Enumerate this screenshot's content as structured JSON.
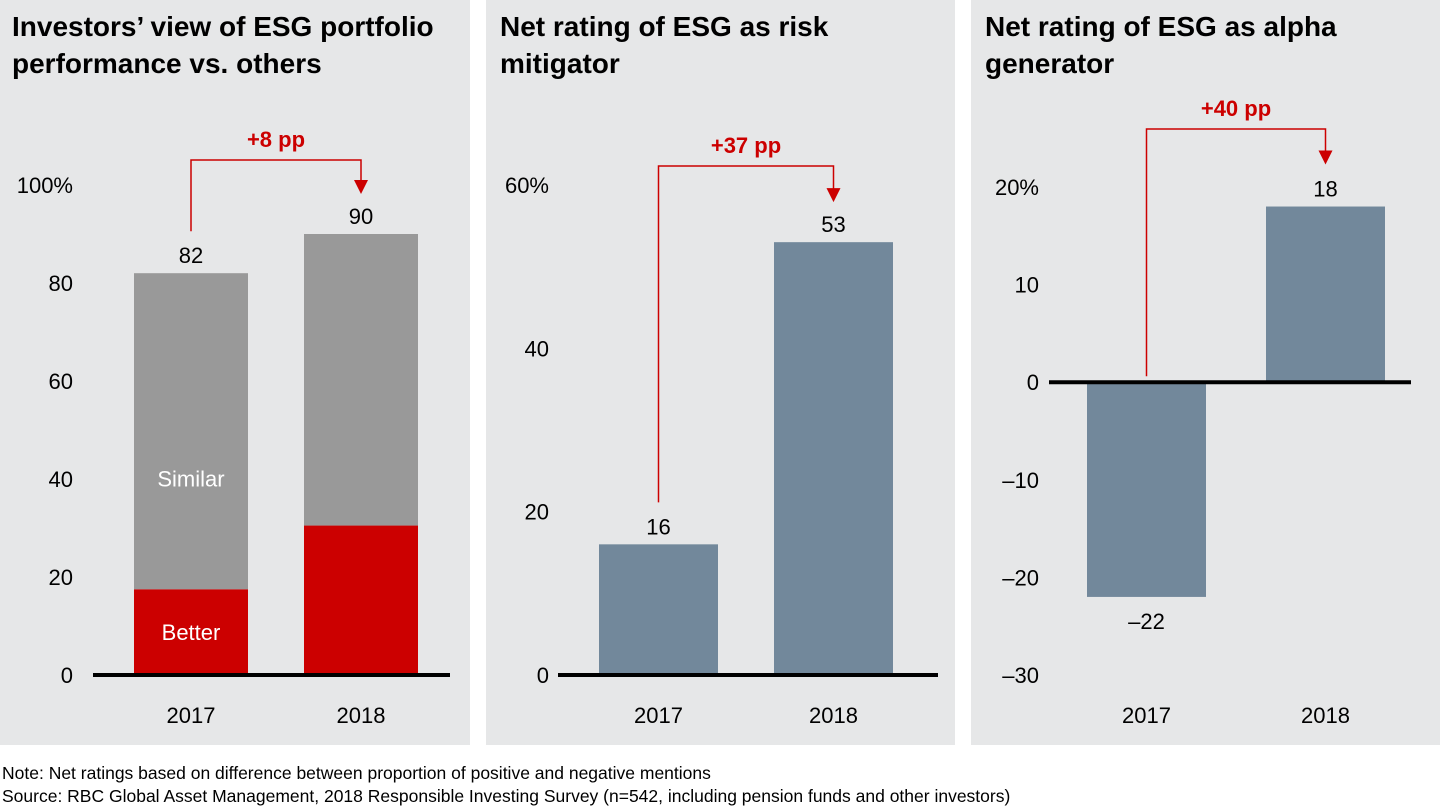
{
  "colors": {
    "panel_bg": "#e6e7e8",
    "better": "#cc0000",
    "similar": "#999999",
    "bar": "#72889b",
    "accent": "#cc0000",
    "axis": "#000000"
  },
  "chart_data": [
    {
      "type": "bar",
      "stacked": true,
      "title": "Investors’ view of ESG portfolio performance vs. others",
      "categories": [
        "2017",
        "2018"
      ],
      "series": [
        {
          "name": "Better",
          "values": [
            17.5,
            30.5
          ]
        },
        {
          "name": "Similar",
          "values": [
            64.5,
            59.5
          ]
        }
      ],
      "totals": [
        82,
        90
      ],
      "total_labels": [
        "82",
        "90"
      ],
      "ylim": [
        0,
        100
      ],
      "yticks": [
        0,
        20,
        40,
        60,
        80,
        100
      ],
      "ytick_labels": [
        "0",
        "20",
        "40",
        "60",
        "80",
        "100%"
      ],
      "annotation": "+8 pp",
      "xlabel": "",
      "ylabel": ""
    },
    {
      "type": "bar",
      "title": "Net rating of ESG as risk mitigator",
      "categories": [
        "2017",
        "2018"
      ],
      "values": [
        16,
        53
      ],
      "value_labels": [
        "16",
        "53"
      ],
      "ylim": [
        0,
        60
      ],
      "yticks": [
        0,
        20,
        40,
        60
      ],
      "ytick_labels": [
        "0",
        "20",
        "40",
        "60%"
      ],
      "annotation": "+37 pp",
      "xlabel": "",
      "ylabel": ""
    },
    {
      "type": "bar",
      "title": "Net rating of ESG as alpha generator",
      "categories": [
        "2017",
        "2018"
      ],
      "values": [
        -22,
        18
      ],
      "value_labels": [
        "–22",
        "18"
      ],
      "ylim": [
        -30,
        20
      ],
      "yticks": [
        -30,
        -20,
        -10,
        0,
        10,
        20
      ],
      "ytick_labels": [
        "–30",
        "–20",
        "–10",
        "0",
        "10",
        "20%"
      ],
      "annotation": "+40 pp",
      "xlabel": "",
      "ylabel": ""
    }
  ],
  "note": "Note: Net ratings based on difference between proportion of positive and negative mentions",
  "source": "Source: RBC Global Asset Management, 2018 Responsible Investing Survey (n=542, including pension funds and other investors)"
}
